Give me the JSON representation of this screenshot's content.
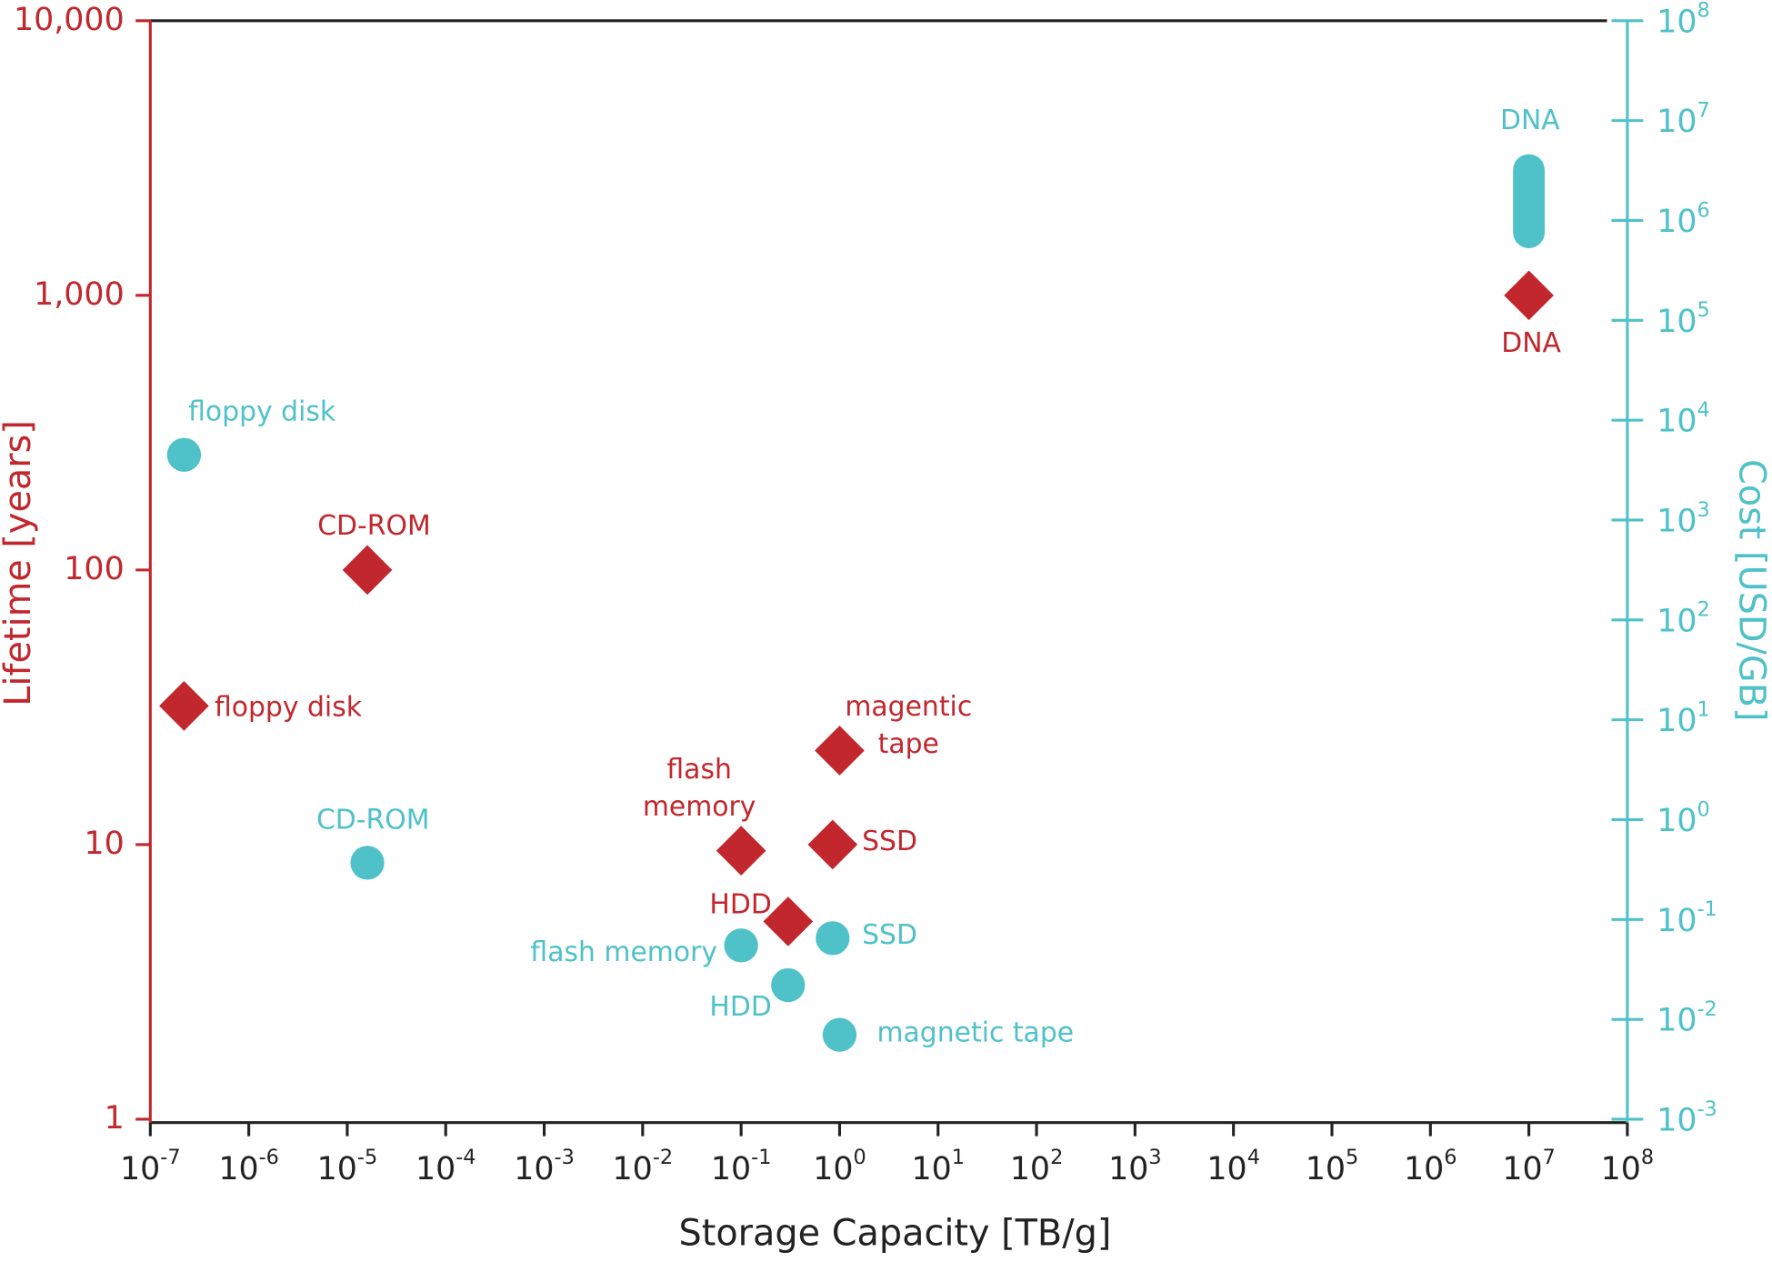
{
  "chart_data": {
    "type": "scatter",
    "xlabel": "Storage Capacity [TB/g]",
    "ylabel": "Lifetime [years]",
    "y2label": "Cost [USD/GB]",
    "xscale": "log",
    "yscale": "log",
    "y2scale": "log",
    "xlim": [
      1e-07,
      100000000.0
    ],
    "ylim": [
      1,
      10000
    ],
    "y2lim": [
      0.001,
      100000000
    ],
    "xticks": [
      {
        "value": 1e-07,
        "label": "10",
        "exponent": "-7"
      },
      {
        "value": 1e-06,
        "label": "10",
        "exponent": "-6"
      },
      {
        "value": 1e-05,
        "label": "10",
        "exponent": "-5"
      },
      {
        "value": 0.0001,
        "label": "10",
        "exponent": "-4"
      },
      {
        "value": 0.001,
        "label": "10",
        "exponent": "-3"
      },
      {
        "value": 0.01,
        "label": "10",
        "exponent": "-2"
      },
      {
        "value": 0.1,
        "label": "10",
        "exponent": "-1"
      },
      {
        "value": 1,
        "label": "10",
        "exponent": "0"
      },
      {
        "value": 10,
        "label": "10",
        "exponent": "1"
      },
      {
        "value": 100,
        "label": "10",
        "exponent": "2"
      },
      {
        "value": 1000,
        "label": "10",
        "exponent": "3"
      },
      {
        "value": 10000,
        "label": "10",
        "exponent": "4"
      },
      {
        "value": 100000,
        "label": "10",
        "exponent": "5"
      },
      {
        "value": 1000000,
        "label": "10",
        "exponent": "6"
      },
      {
        "value": 10000000,
        "label": "10",
        "exponent": "7"
      },
      {
        "value": 100000000,
        "label": "10",
        "exponent": "8"
      }
    ],
    "yticks": [
      1,
      10,
      100,
      {
        "value": 1000,
        "label": "1,000"
      },
      {
        "value": 10000,
        "label": "10,000"
      }
    ],
    "y2ticks": [
      {
        "value": 0.001,
        "label": "10",
        "exponent": "-3"
      },
      {
        "value": 0.01,
        "label": "10",
        "exponent": "-2"
      },
      {
        "value": 0.1,
        "label": "10",
        "exponent": "-1"
      },
      {
        "value": 1,
        "label": "10",
        "exponent": "0"
      },
      {
        "value": 10,
        "label": "10",
        "exponent": "1"
      },
      {
        "value": 100,
        "label": "10",
        "exponent": "2"
      },
      {
        "value": 1000,
        "label": "10",
        "exponent": "3"
      },
      {
        "value": 10000,
        "label": "10",
        "exponent": "4"
      },
      {
        "value": 100000,
        "label": "10",
        "exponent": "5"
      },
      {
        "value": 1000000,
        "label": "10",
        "exponent": "6"
      },
      {
        "value": 10000000,
        "label": "10",
        "exponent": "7"
      },
      {
        "value": 100000000,
        "label": "10",
        "exponent": "8"
      }
    ],
    "series": [
      {
        "axis": "y",
        "marker": "diamond",
        "color": "#c1272d",
        "x": [
          2.2e-07,
          1.6e-05,
          0.1,
          0.3,
          0.85,
          1,
          10000000
        ],
        "values": [
          32,
          100,
          9.5,
          5.25,
          10,
          22,
          1000
        ],
        "labels": [
          [
            "floppy disk"
          ],
          [
            "CD-ROM"
          ],
          [
            "flash",
            "memory"
          ],
          [
            "HDD"
          ],
          [
            "SSD"
          ],
          [
            "magentic",
            "tape"
          ],
          [
            "DNA"
          ]
        ]
      },
      {
        "axis": "y2",
        "marker": "circle",
        "color": "#4fc1c9",
        "x": [
          2.2e-07,
          1.6e-05,
          0.1,
          0.3,
          0.85,
          1,
          10000000
        ],
        "values": [
          4500,
          0.37,
          0.055,
          0.022,
          0.065,
          0.007,
          3200000
        ],
        "lower": [
          null,
          null,
          null,
          null,
          null,
          null,
          760000
        ],
        "labels": [
          [
            "floppy disk"
          ],
          [
            "CD-ROM"
          ],
          [
            "flash memory"
          ],
          [
            "HDD"
          ],
          [
            "SSD"
          ],
          [
            "magnetic tape"
          ],
          [
            "DNA"
          ]
        ]
      }
    ]
  }
}
